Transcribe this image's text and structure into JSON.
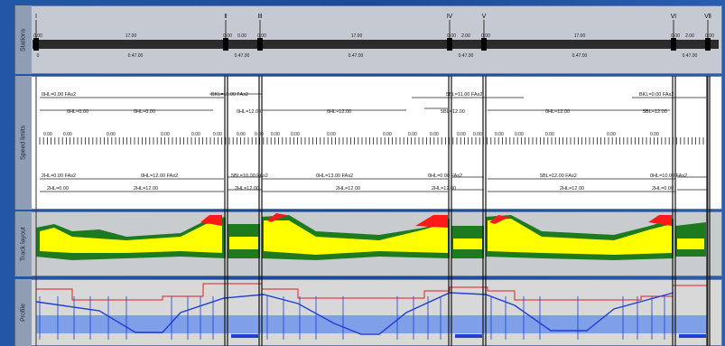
{
  "track_labels": [
    "Stations",
    "Speed limits",
    "Track layout",
    "Profile"
  ],
  "stations": {
    "markers": [
      "Ⅰ",
      "Ⅱ",
      "Ⅲ",
      "Ⅳ",
      "Ⅴ",
      "Ⅵ",
      "Ⅶ"
    ],
    "top_labels": [
      "0.00",
      "17.00",
      "0.00",
      "0.00",
      "0.00",
      "17.00",
      "0.00",
      "2.00",
      "0.00",
      "17.00",
      "0.00",
      "2.00",
      "0.00"
    ],
    "bottom_labels": [
      "0",
      "0.47.00",
      "0.47.00",
      "0.47.00",
      "0.47.00",
      "0.47.00",
      "0.47.00"
    ]
  },
  "speed": {
    "upper_row1": [
      "0HL=0.00 FAs2",
      "BKL=11.00 FAs2",
      "5BL=11.00 FAs2",
      "BKL=0.00 FAs2"
    ],
    "upper_row2": [
      "0HL=0.00",
      "0HL=0.00",
      "0HL=12.00",
      "0HL=12.00",
      "5BL=12.00",
      "0HL=12.00",
      "5BL=12.00"
    ],
    "ruler": [
      "0.00",
      "0.00",
      "0.00",
      "0.00",
      "0.00",
      "0.00",
      "0.00",
      "0.00",
      "0.00",
      "0.00",
      "0.00",
      "0.00",
      "0.00",
      "0.00",
      "0.00",
      "0.00",
      "0.00",
      "0.00",
      "0.00",
      "0.00",
      "0.00"
    ],
    "lower_row1": [
      "2HL=0.00 FAs2",
      "0HL=12.00 FAs2",
      "5BL=10.00 FAs2",
      "0HL=13.00 FAs2",
      "0HL=0.00 FAs2",
      "5BL=12.00 FAs2",
      "0HL=10.00 FAs2"
    ],
    "lower_row2": [
      "2HL=0.00",
      "2HL=12.00",
      "2HL=12.00",
      "2HL=12.00",
      "2HL=12.00",
      "2HL=12.00",
      "2HL=0.00"
    ]
  },
  "colors": {
    "yellow": "#ffff00",
    "green": "#1e7a1e",
    "red": "#ff1a1a",
    "blue_band": "#7f9fe8",
    "profile_line": "#1f3fd6",
    "red_line": "#e02020"
  }
}
